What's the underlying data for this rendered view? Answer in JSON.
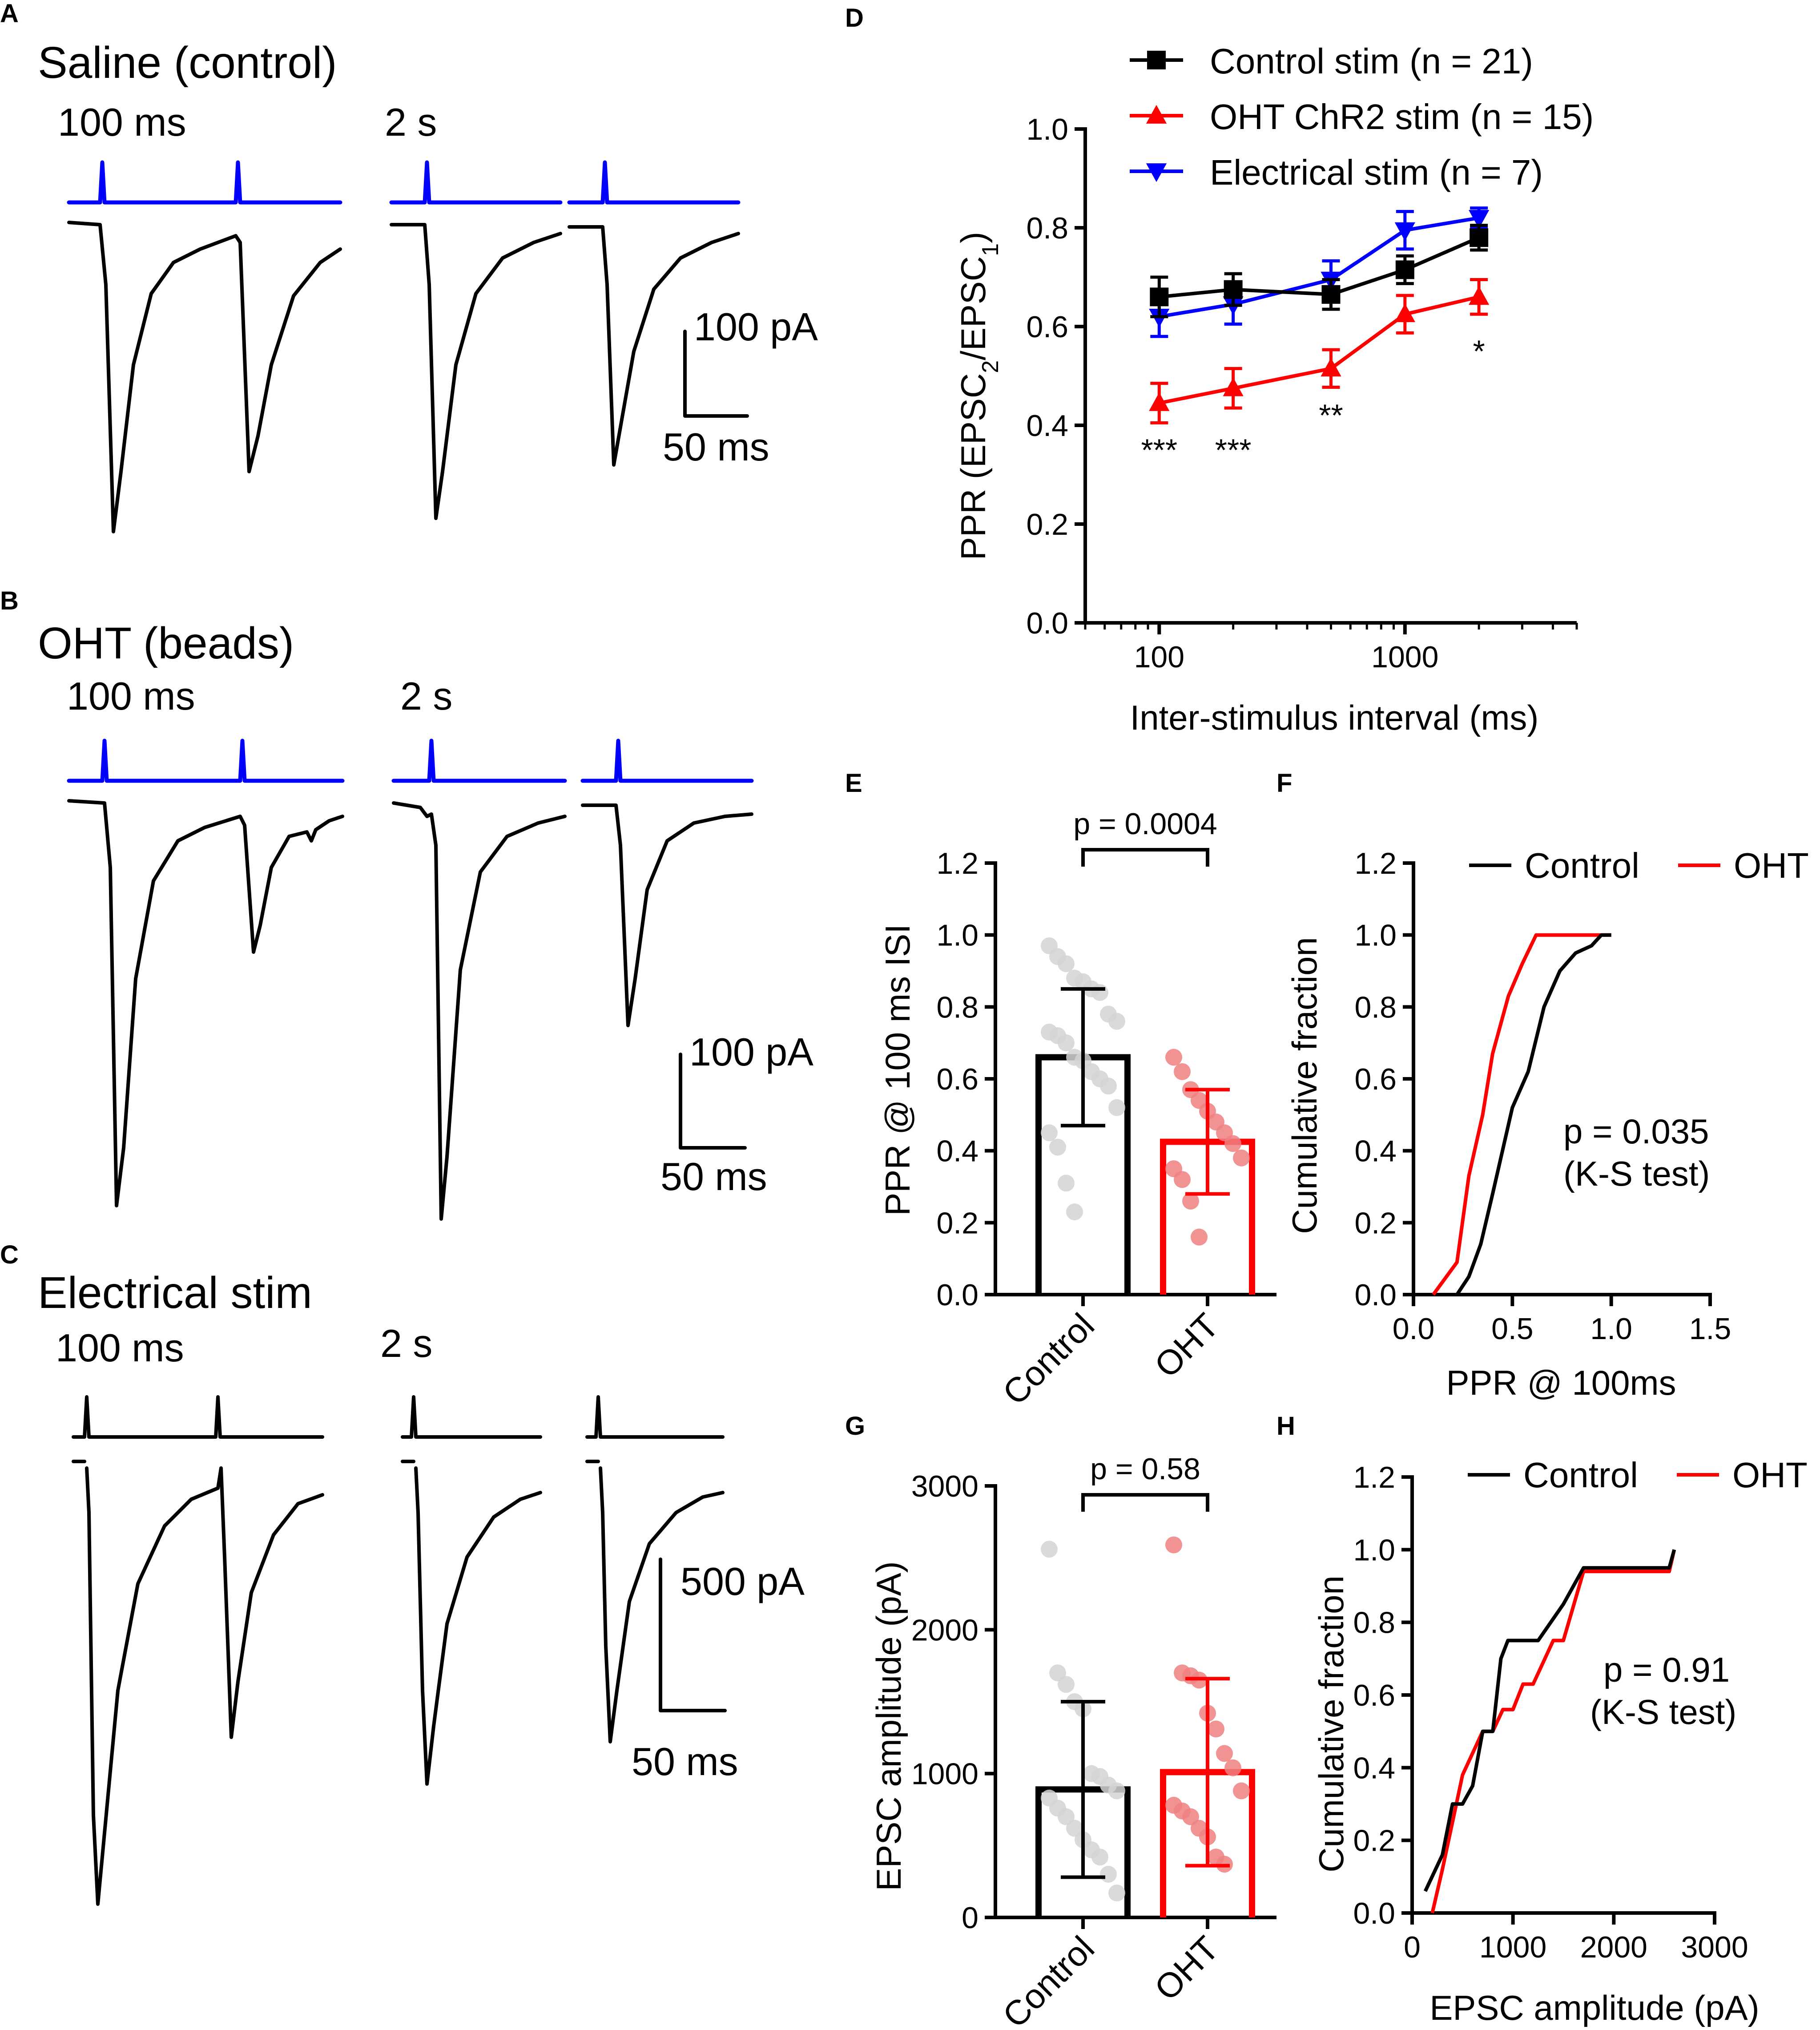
{
  "colors": {
    "black": "#000000",
    "red": "#ff0000",
    "blue": "#0000ff",
    "grey": "#d3d3d3",
    "pink": "#f08080"
  },
  "panels": {
    "A": {
      "letter": "A",
      "title": "Saline (control)",
      "isi_short": "100 ms",
      "isi_long": "2 s",
      "scale_y": "100 pA",
      "scale_x": "50 ms"
    },
    "B": {
      "letter": "B",
      "title": "OHT (beads)",
      "isi_short": "100 ms",
      "isi_long": "2 s",
      "scale_y": "100 pA",
      "scale_x": "50 ms"
    },
    "C": {
      "letter": "C",
      "title": "Electrical stim",
      "isi_short": "100 ms",
      "isi_long": "2 s",
      "scale_y": "500 pA",
      "scale_x": "50 ms"
    },
    "D": {
      "letter": "D"
    },
    "E": {
      "letter": "E"
    },
    "F": {
      "letter": "F"
    },
    "G": {
      "letter": "G"
    },
    "H": {
      "letter": "H"
    }
  },
  "chart_data": [
    {
      "id": "D",
      "type": "line",
      "x_scale": "log",
      "ylabel_parts": [
        "PPR (EPSC",
        "2",
        "/EPSC",
        "1",
        ")"
      ],
      "xlabel": "Inter-stimulus interval (ms)",
      "xlim": [
        50,
        5000
      ],
      "ylim": [
        0,
        1.0
      ],
      "xticks": [
        100,
        1000
      ],
      "xtick_labels": [
        "100",
        "1000"
      ],
      "yticks": [
        0,
        0.2,
        0.4,
        0.6,
        0.8,
        1.0
      ],
      "ytick_labels": [
        "0.0",
        "0.2",
        "0.4",
        "0.6",
        "0.8",
        "1.0"
      ],
      "x": [
        100,
        200,
        500,
        1000,
        2000
      ],
      "series": [
        {
          "name": "Control stim (n = 21)",
          "color": "#000000",
          "marker": "square",
          "values": [
            0.66,
            0.675,
            0.665,
            0.715,
            0.78
          ],
          "err": [
            0.04,
            0.032,
            0.03,
            0.028,
            0.025
          ]
        },
        {
          "name": "OHT ChR2 stim (n = 15)",
          "color": "#ff0000",
          "marker": "triangle-up",
          "values": [
            0.445,
            0.475,
            0.515,
            0.625,
            0.66
          ],
          "err": [
            0.04,
            0.04,
            0.038,
            0.038,
            0.035
          ]
        },
        {
          "name": "Electrical stim (n = 7)",
          "color": "#0000ff",
          "marker": "triangle-down",
          "values": [
            0.62,
            0.645,
            0.695,
            0.795,
            0.82
          ],
          "err": [
            0.04,
            0.04,
            0.038,
            0.038,
            0.02
          ]
        }
      ],
      "annotations": [
        {
          "x": 100,
          "y": 0.36,
          "text": "***"
        },
        {
          "x": 200,
          "y": 0.36,
          "text": "***"
        },
        {
          "x": 500,
          "y": 0.43,
          "text": "**"
        },
        {
          "x": 2000,
          "y": 0.56,
          "text": "*"
        }
      ]
    },
    {
      "id": "E",
      "type": "bar",
      "ylabel": "PPR @ 100 ms ISI",
      "categories": [
        "Control",
        "OHT"
      ],
      "ylim": [
        0,
        1.2
      ],
      "yticks": [
        0,
        0.2,
        0.4,
        0.6,
        0.8,
        1.0,
        1.2
      ],
      "ytick_labels": [
        "0.0",
        "0.2",
        "0.4",
        "0.6",
        "0.8",
        "1.0",
        "1.2"
      ],
      "means": [
        0.66,
        0.425
      ],
      "sd": [
        0.19,
        0.145
      ],
      "bar_colors": [
        "#000000",
        "#ff0000"
      ],
      "point_colors": [
        "#d3d3d3",
        "#f08080"
      ],
      "points": [
        [
          0.97,
          0.94,
          0.92,
          0.88,
          0.87,
          0.85,
          0.84,
          0.78,
          0.76,
          0.73,
          0.72,
          0.7,
          0.66,
          0.65,
          0.62,
          0.6,
          0.58,
          0.52,
          0.45,
          0.41,
          0.31,
          0.23
        ],
        [
          0.66,
          0.62,
          0.57,
          0.54,
          0.51,
          0.48,
          0.45,
          0.42,
          0.38,
          0.35,
          0.32,
          0.26,
          0.16
        ]
      ],
      "bracket_label": "p = 0.0004"
    },
    {
      "id": "F",
      "type": "line",
      "xlabel": "PPR @ 100ms",
      "ylabel": "Cumulative fraction",
      "xlim": [
        0,
        1.5
      ],
      "ylim": [
        0,
        1.2
      ],
      "xticks": [
        0,
        0.5,
        1.0,
        1.5
      ],
      "xtick_labels": [
        "0.0",
        "0.5",
        "1.0",
        "1.5"
      ],
      "yticks": [
        0,
        0.2,
        0.4,
        0.6,
        0.8,
        1.0,
        1.2
      ],
      "ytick_labels": [
        "0.0",
        "0.2",
        "0.4",
        "0.6",
        "0.8",
        "1.0",
        "1.2"
      ],
      "series": [
        {
          "name": "Control",
          "color": "#000000",
          "x": [
            0.22,
            0.28,
            0.34,
            0.4,
            0.5,
            0.58,
            0.66,
            0.74,
            0.82,
            0.9,
            0.95,
            1.0
          ],
          "y": [
            0.0,
            0.05,
            0.14,
            0.28,
            0.52,
            0.62,
            0.8,
            0.9,
            0.95,
            0.97,
            1.0,
            1.0
          ]
        },
        {
          "name": "OHT",
          "color": "#ff0000",
          "x": [
            0.1,
            0.22,
            0.28,
            0.35,
            0.4,
            0.48,
            0.55,
            0.62,
            0.7,
            0.8,
            1.0
          ],
          "y": [
            0.0,
            0.09,
            0.33,
            0.5,
            0.67,
            0.83,
            0.92,
            1.0,
            1.0,
            1.0,
            1.0
          ]
        }
      ],
      "annotation": [
        "p = 0.035",
        "(K-S test)"
      ]
    },
    {
      "id": "G",
      "type": "bar",
      "ylabel": "EPSC amplitude (pA)",
      "categories": [
        "Control",
        "OHT"
      ],
      "ylim": [
        0,
        3000
      ],
      "yticks": [
        0,
        1000,
        2000,
        3000
      ],
      "ytick_labels": [
        "0",
        "1000",
        "2000",
        "3000"
      ],
      "means": [
        890,
        1010
      ],
      "sd": [
        610,
        650
      ],
      "bar_colors": [
        "#000000",
        "#ff0000"
      ],
      "point_colors": [
        "#d3d3d3",
        "#f08080"
      ],
      "points": [
        [
          2560,
          1700,
          1620,
          1500,
          1450,
          1000,
          980,
          920,
          880,
          830,
          760,
          700,
          620,
          540,
          470,
          420,
          300,
          170
        ],
        [
          2590,
          1700,
          1680,
          1650,
          1420,
          1310,
          1140,
          1040,
          880,
          780,
          740,
          700,
          620,
          560,
          420,
          370
        ]
      ],
      "bracket_label": "p = 0.58"
    },
    {
      "id": "H",
      "type": "line",
      "xlabel": "EPSC amplitude (pA)",
      "ylabel": "Cumulative fraction",
      "xlim": [
        0,
        3000
      ],
      "ylim": [
        0,
        1.2
      ],
      "xticks": [
        0,
        1000,
        2000,
        3000
      ],
      "xtick_labels": [
        "0",
        "1000",
        "2000",
        "3000"
      ],
      "yticks": [
        0,
        0.2,
        0.4,
        0.6,
        0.8,
        1.0,
        1.2
      ],
      "ytick_labels": [
        "0.0",
        "0.2",
        "0.4",
        "0.6",
        "0.8",
        "1.0",
        "1.2"
      ],
      "series": [
        {
          "name": "Control",
          "color": "#000000",
          "x": [
            130,
            300,
            400,
            500,
            600,
            700,
            800,
            880,
            950,
            1250,
            1500,
            1700,
            2000,
            2400,
            2550,
            2600
          ],
          "y": [
            0.06,
            0.16,
            0.3,
            0.3,
            0.35,
            0.5,
            0.5,
            0.7,
            0.75,
            0.75,
            0.85,
            0.95,
            0.95,
            0.95,
            0.95,
            1.0
          ]
        },
        {
          "name": "OHT",
          "color": "#ff0000",
          "x": [
            200,
            300,
            400,
            500,
            600,
            700,
            800,
            900,
            1000,
            1100,
            1200,
            1300,
            1400,
            1500,
            1700,
            2000,
            2300,
            2550,
            2600
          ],
          "y": [
            0.0,
            0.12,
            0.25,
            0.38,
            0.44,
            0.5,
            0.5,
            0.56,
            0.56,
            0.63,
            0.63,
            0.69,
            0.75,
            0.75,
            0.94,
            0.94,
            0.94,
            0.94,
            1.0
          ]
        }
      ],
      "annotation": [
        "p = 0.91",
        "(K-S test)"
      ]
    }
  ]
}
